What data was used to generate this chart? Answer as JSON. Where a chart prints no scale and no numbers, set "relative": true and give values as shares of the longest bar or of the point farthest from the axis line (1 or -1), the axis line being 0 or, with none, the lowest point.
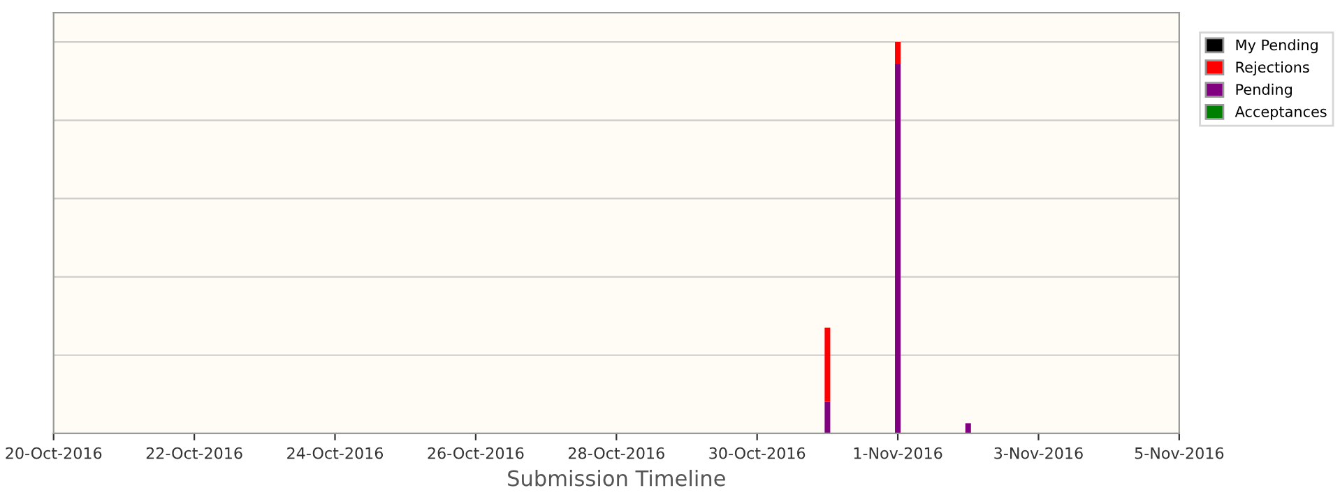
{
  "chart_data": {
    "type": "bar",
    "stacked": true,
    "relative": true,
    "xlabel": "Submission Timeline",
    "x": [
      "2016-10-31",
      "2016-11-01",
      "2016-11-02"
    ],
    "series": [
      {
        "name": "Acceptances",
        "color": "#008000",
        "values": [
          null,
          null,
          null
        ]
      },
      {
        "name": "Pending",
        "color": "#800080",
        "values": [
          0.081,
          0.943,
          0.026
        ]
      },
      {
        "name": "Rejections",
        "color": "#ff0000",
        "values": [
          0.189,
          0.057,
          null
        ]
      },
      {
        "name": "My Pending",
        "color": "#000000",
        "values": [
          null,
          null,
          null
        ]
      }
    ],
    "xlim": [
      "2016-10-20",
      "2016-11-05"
    ],
    "xticks": [
      {
        "value": "2016-10-20",
        "label": "20-Oct-2016"
      },
      {
        "value": "2016-10-22",
        "label": "22-Oct-2016"
      },
      {
        "value": "2016-10-24",
        "label": "24-Oct-2016"
      },
      {
        "value": "2016-10-26",
        "label": "26-Oct-2016"
      },
      {
        "value": "2016-10-28",
        "label": "28-Oct-2016"
      },
      {
        "value": "2016-10-30",
        "label": "30-Oct-2016"
      },
      {
        "value": "2016-11-01",
        "label": "1-Nov-2016"
      },
      {
        "value": "2016-11-03",
        "label": "3-Nov-2016"
      },
      {
        "value": "2016-11-05",
        "label": "5-Nov-2016"
      }
    ],
    "grid": "y",
    "legend": "top right"
  }
}
